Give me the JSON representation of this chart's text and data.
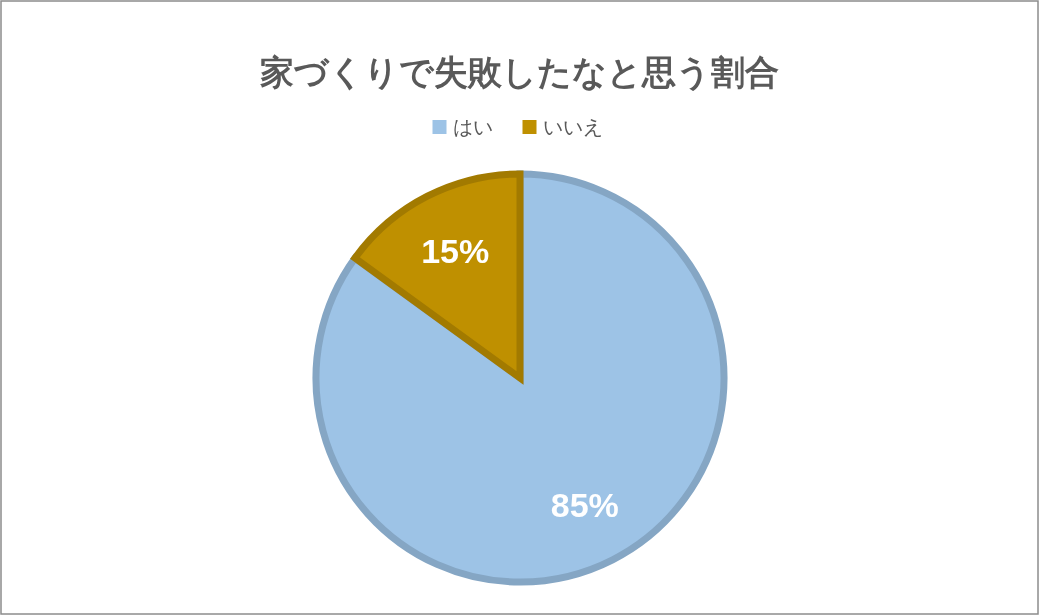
{
  "chart_data": {
    "type": "pie",
    "title": "家づくりで失敗したなと思う割合",
    "categories": [
      "はい",
      "いいえ"
    ],
    "values": [
      85,
      15
    ],
    "colors": [
      "#9dc3e6",
      "#bf9000"
    ],
    "value_labels": [
      "85%",
      "15%"
    ],
    "legend": "top"
  }
}
